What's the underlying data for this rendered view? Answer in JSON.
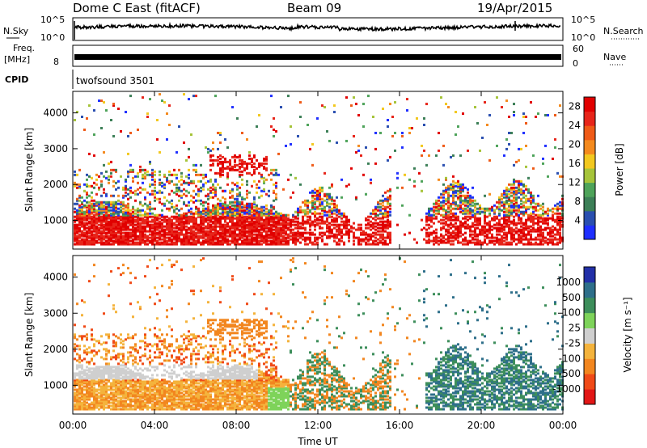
{
  "header": {
    "title": "Dome C East (fitACF)",
    "beam": "Beam 09",
    "date": "19/Apr/2015"
  },
  "top_panels": {
    "nsky_label": "N.Sky",
    "nsearch_label": "N.Search",
    "nsky_ticks": [
      "10^5",
      "10^0"
    ],
    "nsearch_ticks": [
      "10^5",
      "10^0"
    ],
    "freq_label": "Freq.",
    "freq_unit": "[MHz]",
    "freq_ticks": [
      "8"
    ],
    "nave_label": "Nave",
    "nave_ticks": [
      "60",
      "0"
    ],
    "cpid_label": "CPID",
    "cpid_value": "twofsound 3501"
  },
  "colors": {
    "power": [
      "#1f2fff",
      "#2a4fb0",
      "#3c7f57",
      "#4ea35a",
      "#a6c43a",
      "#f2c81f",
      "#f48a1e",
      "#ef5a17",
      "#e7251a",
      "#e10000"
    ],
    "velocity": [
      "#e21616",
      "#f04a17",
      "#f2861f",
      "#f4b33c",
      "#cfcfcf",
      "#7ed35a",
      "#3d8e5b",
      "#2e6f8a",
      "#2230a8"
    ]
  },
  "chart_data": [
    {
      "type": "heatmap",
      "name": "power",
      "ylabel": "Slant Range [km]",
      "y_ticks": [
        1000,
        2000,
        3000,
        4000
      ],
      "ylim": [
        200,
        4600
      ],
      "x_ticks": [
        "00:00",
        "04:00",
        "08:00",
        "12:00",
        "16:00",
        "20:00",
        "00:00"
      ],
      "xlim_hours": [
        0,
        24
      ],
      "colorbar_label": "Power [dB]",
      "colorbar_ticks": [
        4,
        8,
        12,
        16,
        20,
        24,
        28
      ],
      "colorbar_range": [
        0,
        30
      ]
    },
    {
      "type": "heatmap",
      "name": "velocity",
      "ylabel": "Slant Range [km]",
      "y_ticks": [
        1000,
        2000,
        3000,
        4000
      ],
      "ylim": [
        200,
        4600
      ],
      "x_ticks": [
        "00:00",
        "04:00",
        "08:00",
        "12:00",
        "16:00",
        "20:00",
        "00:00"
      ],
      "xlim_hours": [
        0,
        24
      ],
      "xlabel": "Time UT",
      "colorbar_label": "Velocity [m s⁻¹]",
      "colorbar_ticks": [
        "1000",
        "500",
        "100",
        "25",
        "-25",
        "-100",
        "-500",
        "-1000"
      ]
    }
  ]
}
